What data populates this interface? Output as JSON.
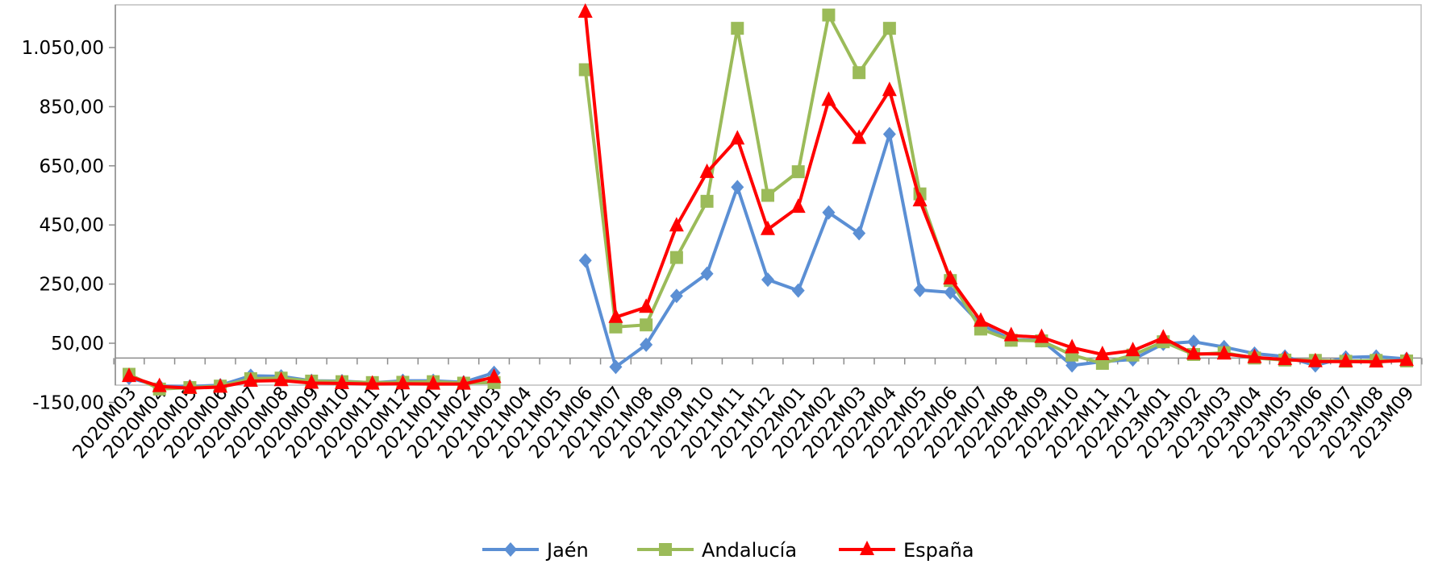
{
  "chart_data": {
    "type": "line",
    "title": "",
    "xlabel": "",
    "ylabel": "",
    "ylim": [
      -150,
      1170
    ],
    "yticks": [
      -150,
      50,
      250,
      450,
      650,
      850,
      1050
    ],
    "ytick_labels": [
      "-150,00",
      "50,00",
      "250,00",
      "450,00",
      "650,00",
      "850,00",
      "1.050,00"
    ],
    "grid": false,
    "legend_position": "bottom",
    "categories": [
      "2020M03",
      "2020M04",
      "2020M05",
      "2020M06",
      "2020M07",
      "2020M08",
      "2020M09",
      "2020M10",
      "2020M11",
      "2020M12",
      "2021M01",
      "2021M02",
      "2021M03",
      "2021M04",
      "2021M05",
      "2021M06",
      "2021M07",
      "2021M08",
      "2021M09",
      "2021M10",
      "2021M11",
      "2021M12",
      "2022M01",
      "2022M02",
      "2022M03",
      "2022M04",
      "2022M05",
      "2022M06",
      "2022M07",
      "2022M08",
      "2022M09",
      "2022M10",
      "2022M11",
      "2022M12",
      "2023M01",
      "2023M02",
      "2023M03",
      "2023M04",
      "2023M05",
      "2023M06",
      "2023M07",
      "2023M08",
      "2023M09"
    ],
    "series": [
      {
        "name": "Jaén",
        "color": "#5b8fd4",
        "marker": "diamond",
        "values": [
          -67,
          -95,
          -96,
          -92,
          -60,
          -62,
          -77,
          -78,
          -84,
          -77,
          -77,
          -82,
          -50,
          null,
          null,
          330,
          -30,
          45,
          210,
          285,
          578,
          265,
          228,
          492,
          422,
          757,
          230,
          222,
          114,
          62,
          60,
          -25,
          -12,
          -5,
          48,
          55,
          37,
          15,
          5,
          -25,
          2,
          5,
          -3
        ]
      },
      {
        "name": "Andalucía",
        "color": "#9bbb59",
        "marker": "square",
        "values": [
          -55,
          -105,
          -100,
          -95,
          -70,
          -68,
          -78,
          -80,
          -83,
          -82,
          -80,
          -85,
          -83,
          null,
          null,
          975,
          105,
          112,
          340,
          530,
          1115,
          550,
          630,
          1160,
          965,
          1115,
          555,
          262,
          98,
          60,
          58,
          10,
          -18,
          10,
          55,
          12,
          18,
          0,
          -7,
          -8,
          -11,
          -8,
          -10
        ]
      },
      {
        "name": "España",
        "color": "#ff0000",
        "marker": "triangle",
        "values": [
          -62,
          -96,
          -102,
          -98,
          -78,
          -76,
          -85,
          -86,
          -88,
          -87,
          -88,
          -88,
          -65,
          null,
          null,
          1170,
          138,
          172,
          447,
          628,
          741,
          435,
          510,
          872,
          743,
          905,
          532,
          268,
          125,
          76,
          70,
          35,
          12,
          25,
          68,
          14,
          14,
          2,
          -5,
          -12,
          -12,
          -13,
          -8
        ]
      }
    ]
  }
}
